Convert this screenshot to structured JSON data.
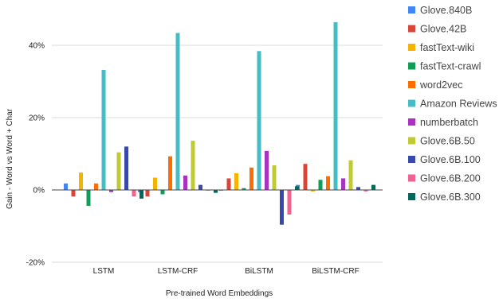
{
  "chart_data": {
    "type": "bar",
    "xlabel": "Pre-trained Word Embeddings",
    "ylabel": "Gain - Word vs Word + Char",
    "ylim": [
      -20,
      50
    ],
    "yticks": [
      -20,
      0,
      20,
      40
    ],
    "ytick_labels": [
      "-20%",
      "0%",
      "20%",
      "40%"
    ],
    "grid": true,
    "legend_position": "right",
    "categories": [
      "LSTM",
      "LSTM-CRF",
      "BiLSTM",
      "BiLSTM-CRF"
    ],
    "series": [
      {
        "name": "Glove.840B",
        "color": "#4285f4",
        "values": [
          1.8,
          -0.6,
          -0.2,
          1.4
        ]
      },
      {
        "name": "Glove.42B",
        "color": "#db4437",
        "values": [
          -1.8,
          -1.8,
          3.2,
          7.2
        ]
      },
      {
        "name": "fastText-wiki",
        "color": "#f4b400",
        "values": [
          4.8,
          3.4,
          4.6,
          -0.4
        ]
      },
      {
        "name": "fastText-crawl",
        "color": "#0f9d58",
        "values": [
          -4.4,
          -1.2,
          0.5,
          2.8
        ]
      },
      {
        "name": "word2vec",
        "color": "#ff6d00",
        "values": [
          1.8,
          9.3,
          6.2,
          3.8
        ]
      },
      {
        "name": "Amazon Reviews",
        "color": "#46bdc6",
        "values": [
          33.2,
          43.4,
          38.4,
          46.4
        ]
      },
      {
        "name": "numberbatch",
        "color": "#ab30c4",
        "values": [
          -0.6,
          4.0,
          10.8,
          3.2
        ]
      },
      {
        "name": "Glove.6B.50",
        "color": "#c0ca33",
        "values": [
          10.4,
          13.6,
          6.8,
          8.2
        ]
      },
      {
        "name": "Glove.6B.100",
        "color": "#3949ab",
        "values": [
          12.0,
          1.4,
          -9.6,
          0.8
        ]
      },
      {
        "name": "Glove.6B.200",
        "color": "#f06292",
        "values": [
          -1.8,
          -0.2,
          -6.8,
          -0.4
        ]
      },
      {
        "name": "Glove.6B.300",
        "color": "#00695c",
        "values": [
          -2.4,
          -0.8,
          1.0,
          1.4
        ]
      }
    ]
  }
}
